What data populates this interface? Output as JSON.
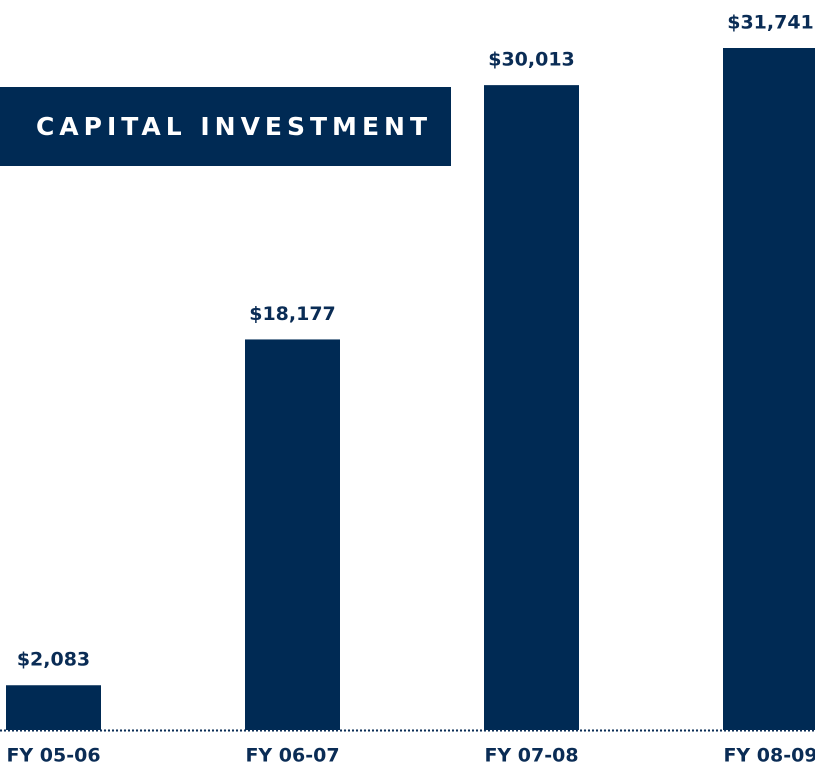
{
  "chart_data": {
    "type": "bar",
    "title": "CAPITAL INVESTMENT",
    "categories": [
      "FY 05-06",
      "FY 06-07",
      "FY 07-08",
      "FY 08-09"
    ],
    "values": [
      2083,
      18177,
      30013,
      31741
    ],
    "value_labels": [
      "$2,083",
      "$18,177",
      "$30,013",
      "$31,741"
    ],
    "color": "#002a54"
  }
}
